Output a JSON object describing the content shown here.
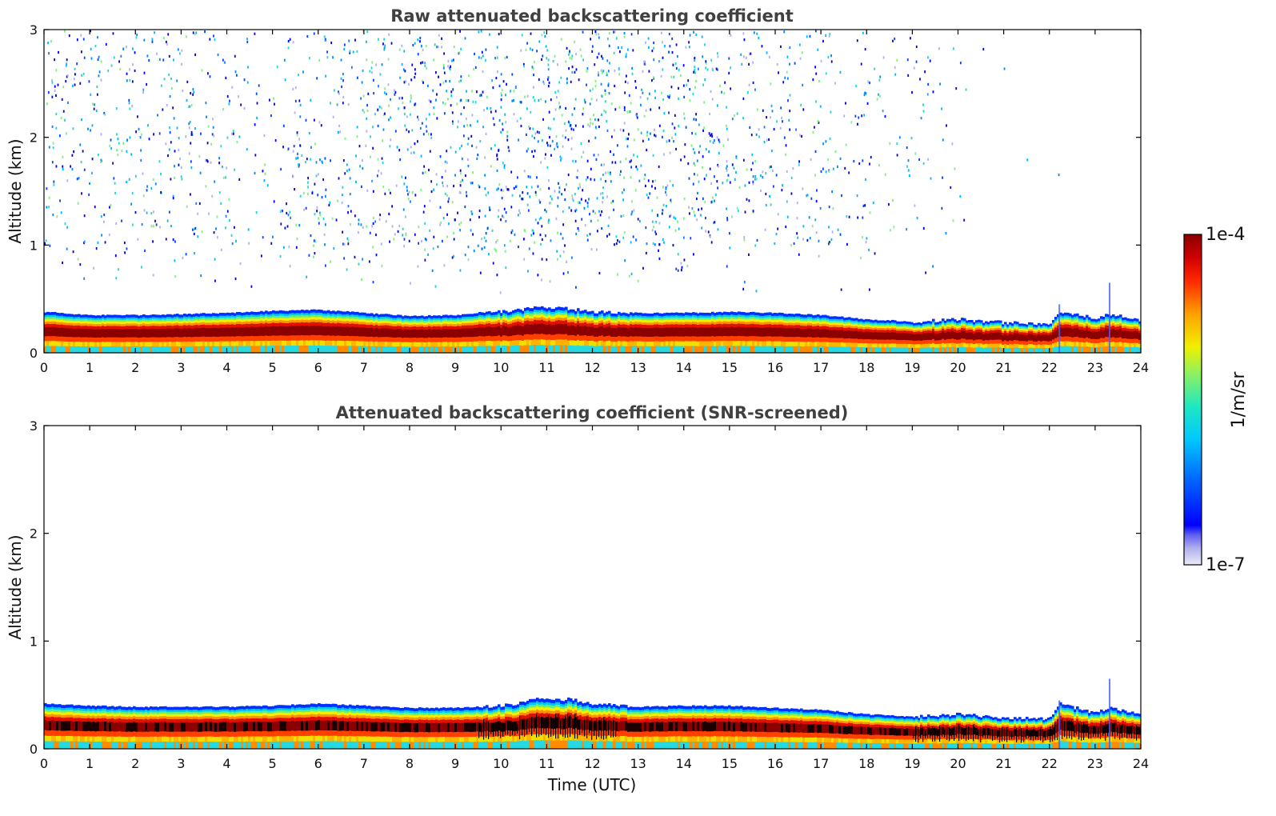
{
  "chart_data": [
    {
      "type": "heatmap",
      "title": "Raw attenuated backscattering coefficient",
      "xlabel": "",
      "ylabel": "Altitude (km)",
      "xlim": [
        0,
        24
      ],
      "ylim": [
        0,
        3
      ],
      "x_ticks": [
        "0",
        "1",
        "2",
        "3",
        "4",
        "5",
        "6",
        "7",
        "8",
        "9",
        "10",
        "11",
        "12",
        "13",
        "14",
        "15",
        "16",
        "17",
        "18",
        "19",
        "20",
        "21",
        "22",
        "23",
        "24"
      ],
      "y_ticks": [
        "0",
        "1",
        "2",
        "3"
      ],
      "layer_top_km": [
        [
          0,
          0.38
        ],
        [
          1,
          0.35
        ],
        [
          2,
          0.35
        ],
        [
          3,
          0.36
        ],
        [
          4,
          0.37
        ],
        [
          5,
          0.39
        ],
        [
          6,
          0.4
        ],
        [
          7,
          0.37
        ],
        [
          8,
          0.34
        ],
        [
          9,
          0.35
        ],
        [
          10,
          0.38
        ],
        [
          10.8,
          0.42
        ],
        [
          11.5,
          0.41
        ],
        [
          12,
          0.38
        ],
        [
          13,
          0.37
        ],
        [
          14,
          0.37
        ],
        [
          15,
          0.38
        ],
        [
          16,
          0.37
        ],
        [
          17,
          0.35
        ],
        [
          18,
          0.31
        ],
        [
          19,
          0.29
        ],
        [
          20,
          0.31
        ],
        [
          21,
          0.28
        ],
        [
          22,
          0.27
        ],
        [
          22.2,
          0.38
        ],
        [
          23,
          0.32
        ],
        [
          23.3,
          0.36
        ],
        [
          24,
          0.3
        ]
      ],
      "noise": "sparse speckle 0.6-3 km, densest around 10-12 UTC, absent after 21 UTC"
    },
    {
      "type": "heatmap",
      "title": "Attenuated backscattering coefficient (SNR-screened)",
      "xlabel": "Time (UTC)",
      "ylabel": "Altitude (km)",
      "xlim": [
        0,
        24
      ],
      "ylim": [
        0,
        3
      ],
      "x_ticks": [
        "0",
        "1",
        "2",
        "3",
        "4",
        "5",
        "6",
        "7",
        "8",
        "9",
        "10",
        "11",
        "12",
        "13",
        "14",
        "15",
        "16",
        "17",
        "18",
        "19",
        "20",
        "21",
        "22",
        "23",
        "24"
      ],
      "y_ticks": [
        "0",
        "1",
        "2",
        "3"
      ],
      "layer_top_km": [
        [
          0,
          0.42
        ],
        [
          1,
          0.4
        ],
        [
          2,
          0.39
        ],
        [
          3,
          0.39
        ],
        [
          4,
          0.39
        ],
        [
          5,
          0.4
        ],
        [
          6,
          0.42
        ],
        [
          7,
          0.4
        ],
        [
          8,
          0.38
        ],
        [
          9,
          0.38
        ],
        [
          10,
          0.4
        ],
        [
          10.8,
          0.46
        ],
        [
          11.5,
          0.46
        ],
        [
          12,
          0.42
        ],
        [
          13,
          0.39
        ],
        [
          14,
          0.4
        ],
        [
          15,
          0.4
        ],
        [
          16,
          0.38
        ],
        [
          17,
          0.36
        ],
        [
          18,
          0.32
        ],
        [
          19,
          0.3
        ],
        [
          20,
          0.32
        ],
        [
          21,
          0.29
        ],
        [
          22,
          0.28
        ],
        [
          22.2,
          0.42
        ],
        [
          23,
          0.33
        ],
        [
          23.3,
          0.38
        ],
        [
          24,
          0.31
        ]
      ],
      "noise": "none"
    }
  ],
  "colorbar": {
    "max_label": "1e-4",
    "min_label": "1e-7",
    "unit_label": "1/m/sr",
    "colors": [
      "#e6e6f8",
      "#c0c0ee",
      "#9090e6",
      "#0000ff",
      "#0050ff",
      "#00a0ff",
      "#00d8e8",
      "#40f0b0",
      "#a0f060",
      "#f0f000",
      "#ffb000",
      "#ff6000",
      "#ff2000",
      "#d00000",
      "#8b0000"
    ]
  }
}
